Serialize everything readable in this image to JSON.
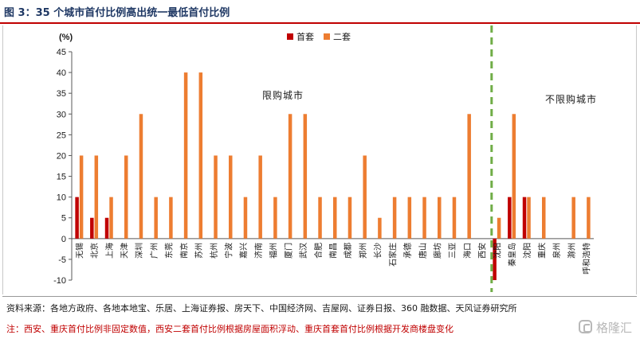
{
  "header": {
    "title": "图 3：35 个城市首付比例高出统一最低首付比例"
  },
  "chart_data": {
    "type": "bar",
    "ylabel": "(%)",
    "ylim": [
      -10,
      45
    ],
    "yticks": [
      -10,
      -5,
      0,
      5,
      10,
      15,
      20,
      25,
      30,
      35,
      40,
      45
    ],
    "grid": false,
    "legend": "top-center",
    "categories": [
      "无锡",
      "北京",
      "上海",
      "天津",
      "深圳",
      "广州",
      "东莞",
      "南京",
      "苏州",
      "杭州",
      "宁波",
      "嘉兴",
      "济南",
      "福州",
      "厦门",
      "武汉",
      "合肥",
      "南昌",
      "成都",
      "郑州",
      "长沙",
      "石家庄",
      "承德",
      "唐山",
      "廊坊",
      "三亚",
      "海口",
      "西安",
      "沈阳",
      "秦皇岛",
      "沈阳",
      "重庆",
      "泉州",
      "滁州",
      "呼和浩特"
    ],
    "tick_labels": [
      "无锡",
      "北京",
      "上海",
      "天津",
      "深圳",
      "广州",
      "东莞",
      "南京",
      "苏州",
      "杭州",
      "宁波",
      "嘉兴",
      "济南",
      "福州",
      "厦门",
      "武汉",
      "合肥",
      "南昌",
      "成都",
      "郑州",
      "长沙",
      "石家庄",
      "承德",
      "唐山",
      "廊坊",
      "三亚",
      "海口",
      "西安",
      "沈阳",
      "秦皇岛",
      "沈阳",
      "重庆",
      "泉州",
      "滁州",
      "呼和浩特"
    ],
    "series": [
      {
        "name": "首套",
        "color": "#c00000",
        "values": [
          10,
          5,
          5,
          0,
          0,
          0,
          0,
          0,
          0,
          0,
          0,
          0,
          0,
          0,
          0,
          0,
          0,
          0,
          0,
          0,
          0,
          0,
          0,
          0,
          0,
          0,
          0,
          0,
          -10,
          10,
          10,
          0,
          0,
          0,
          0
        ]
      },
      {
        "name": "二套",
        "color": "#ed7d31",
        "values": [
          20,
          20,
          10,
          20,
          30,
          10,
          10,
          40,
          40,
          20,
          20,
          10,
          20,
          10,
          30,
          30,
          10,
          10,
          10,
          20,
          5,
          10,
          10,
          10,
          10,
          10,
          30,
          0,
          5,
          30,
          10,
          10,
          0,
          10,
          10
        ]
      }
    ],
    "divider_after_index": 28,
    "divider_color": "#70ad47",
    "annotations": [
      {
        "text": "限购城市",
        "region": "left"
      },
      {
        "text": "不限购城市",
        "region": "right"
      }
    ]
  },
  "footer": {
    "source": "资料来源：各地方政府、各地本地宝、乐居、上海证券报、房天下、中国经济网、吉屋网、证券日报、360 融数据、天风证券研究所",
    "note": "注：西安、重庆首付比例非固定数值，西安二套首付比例根据房屋面积浮动、重庆首套首付比例根据开发商楼盘变化"
  },
  "watermark": {
    "text": "格隆汇"
  }
}
